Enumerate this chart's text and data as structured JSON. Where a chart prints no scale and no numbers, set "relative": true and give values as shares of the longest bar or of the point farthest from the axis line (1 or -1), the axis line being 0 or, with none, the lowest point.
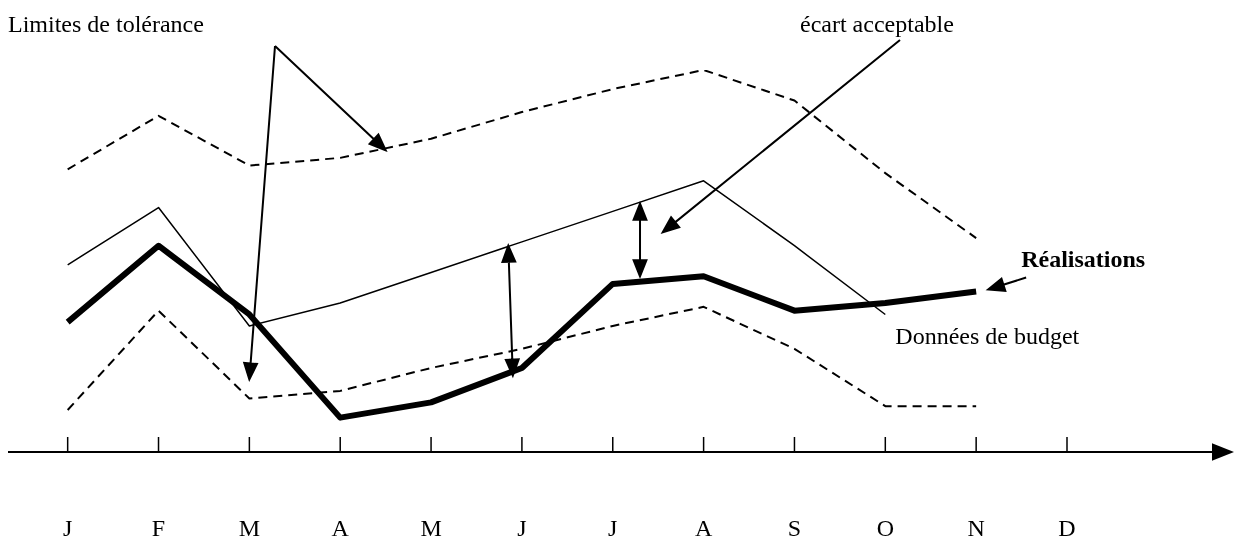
{
  "chart_data": {
    "type": "line",
    "relative": true,
    "categories": [
      "J",
      "F",
      "M",
      "A",
      "M",
      "J",
      "J",
      "A",
      "S",
      "O",
      "N",
      "D"
    ],
    "grid": false,
    "legend": false,
    "marker": "none",
    "annotations": [
      "Limites de tolérance",
      "écart acceptable"
    ],
    "series": [
      {
        "color": "#000000",
        "line_style": "dashed",
        "values": [
          0.74,
          0.88,
          0.75,
          0.77,
          0.82,
          0.89,
          0.95,
          1,
          0.92,
          0.73,
          0.56,
          null
        ]
      },
      {
        "name": "Données de budget",
        "color": "#000000",
        "line_style": "solid",
        "values": [
          0.49,
          0.64,
          0.33,
          0.39,
          0.47,
          0.55,
          0.63,
          0.71,
          0.54,
          0.36,
          null,
          null
        ]
      },
      {
        "name": "Réalisations",
        "color": "#000000",
        "line_style": "solid",
        "values": [
          0.34,
          0.54,
          0.36,
          0.09,
          0.13,
          0.22,
          0.44,
          0.46,
          0.37,
          0.39,
          0.42,
          null
        ]
      },
      {
        "color": "#000000",
        "line_style": "dashed",
        "values": [
          0.11,
          0.37,
          0.14,
          0.16,
          0.22,
          0.27,
          0.33,
          0.38,
          0.27,
          0.12,
          0.12,
          null
        ]
      }
    ]
  }
}
